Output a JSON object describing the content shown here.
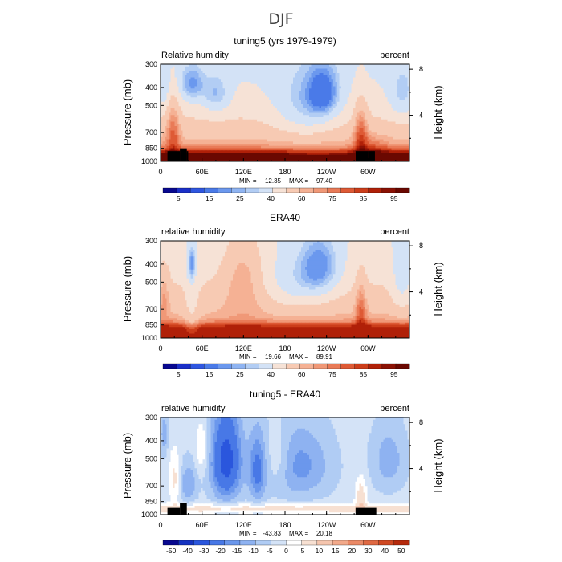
{
  "figure": {
    "title": "DJF"
  },
  "chart_data": [
    {
      "type": "heatmap",
      "title": "tuning5 (yrs 1979-1979)",
      "left_label": "Relative humidity",
      "right_label": "percent",
      "ylabel": "Pressure (mb)",
      "ylabel_right": "Height (km)",
      "x_ticks": [
        "0",
        "60E",
        "120E",
        "180",
        "120W",
        "60W"
      ],
      "x_tick_values": [
        0,
        60,
        120,
        180,
        240,
        300
      ],
      "xlim": [
        0,
        360
      ],
      "y_ticks": [
        "300",
        "400",
        "500",
        "700",
        "850",
        "1000"
      ],
      "y_tick_values": [
        300,
        400,
        500,
        700,
        850,
        1000
      ],
      "ylim": [
        1000,
        300
      ],
      "y_scale": "log",
      "height_ticks": [
        "8",
        "4"
      ],
      "height_tick_values": [
        8,
        4
      ],
      "min_label": "MIN =",
      "min_value": "12.35",
      "max_label": "MAX =",
      "max_value": "97.40",
      "colorbar_ticks": [
        "5",
        "15",
        "25",
        "40",
        "60",
        "75",
        "85",
        "95"
      ],
      "field": "tuning5",
      "palette": "full"
    },
    {
      "type": "heatmap",
      "title": "ERA40",
      "left_label": "relative humidity",
      "right_label": "percent",
      "ylabel": "Pressure (mb)",
      "ylabel_right": "Height (km)",
      "x_ticks": [
        "0",
        "60E",
        "120E",
        "180",
        "120W",
        "60W"
      ],
      "x_tick_values": [
        0,
        60,
        120,
        180,
        240,
        300
      ],
      "xlim": [
        0,
        360
      ],
      "y_ticks": [
        "300",
        "400",
        "500",
        "700",
        "850",
        "1000"
      ],
      "y_tick_values": [
        300,
        400,
        500,
        700,
        850,
        1000
      ],
      "ylim": [
        1000,
        300
      ],
      "y_scale": "log",
      "height_ticks": [
        "8",
        "4"
      ],
      "height_tick_values": [
        8,
        4
      ],
      "min_label": "MIN =",
      "min_value": "19.66",
      "max_label": "MAX =",
      "max_value": "89.91",
      "colorbar_ticks": [
        "5",
        "15",
        "25",
        "40",
        "60",
        "75",
        "85",
        "95"
      ],
      "field": "era40",
      "palette": "full"
    },
    {
      "type": "heatmap",
      "title": "tuning5 - ERA40",
      "left_label": "relative humidity",
      "right_label": "percent",
      "ylabel": "Pressure (mb)",
      "ylabel_right": "Height (km)",
      "x_ticks": [
        "0",
        "60E",
        "120E",
        "180",
        "120W",
        "60W"
      ],
      "x_tick_values": [
        0,
        60,
        120,
        180,
        240,
        300
      ],
      "xlim": [
        0,
        360
      ],
      "y_ticks": [
        "300",
        "400",
        "500",
        "700",
        "850",
        "1000"
      ],
      "y_tick_values": [
        300,
        400,
        500,
        700,
        850,
        1000
      ],
      "ylim": [
        1000,
        300
      ],
      "y_scale": "log",
      "height_ticks": [
        "8",
        "4"
      ],
      "height_tick_values": [
        8,
        4
      ],
      "min_label": "MIN =",
      "min_value": "-43.83",
      "max_label": "MAX =",
      "max_value": "20.18",
      "colorbar_ticks": [
        "-50",
        "-40",
        "-30",
        "-20",
        "-15",
        "-10",
        "-5",
        "0",
        "5",
        "10",
        "15",
        "20",
        "30",
        "40",
        "50"
      ],
      "field": "diff",
      "palette": "diff"
    }
  ],
  "palettes": {
    "full": [
      "#08088f",
      "#1a2fc8",
      "#2f56e0",
      "#4a7ae8",
      "#6b98ee",
      "#8fb4f2",
      "#b2cdf4",
      "#d3e2f6",
      "#f6e2d6",
      "#f7cab3",
      "#f5b194",
      "#f09877",
      "#e97a57",
      "#de5a35",
      "#cc3d1a",
      "#b02008",
      "#8a1104",
      "#6a0801"
    ],
    "diff": [
      "#08088f",
      "#1533c0",
      "#2a56dd",
      "#4878e6",
      "#6b97ec",
      "#8eb2f1",
      "#b0ccf4",
      "#d4e3f7",
      "#ffffff",
      "#f7e0d2",
      "#f5c5ae",
      "#f2a98a",
      "#ea8966",
      "#df6943",
      "#cf4822",
      "#b52a0c"
    ],
    "colorbar_full": [
      "#08088f",
      "#1a2fc8",
      "#2f56e0",
      "#4a7ae8",
      "#6b98ee",
      "#8fb4f2",
      "#b2cdf4",
      "#d3e2f6",
      "#f6e2d6",
      "#f7cab3",
      "#f5b194",
      "#f09877",
      "#e97a57",
      "#de5a35",
      "#cc3d1a",
      "#b02008",
      "#8a1104",
      "#6a0801"
    ],
    "colorbar_diff": [
      "#08088f",
      "#1533c0",
      "#2a56dd",
      "#4878e6",
      "#6b97ec",
      "#8eb2f1",
      "#b0ccf4",
      "#d4e3f7",
      "#ffffff",
      "#f7e0d2",
      "#f5c5ae",
      "#f2a98a",
      "#ea8966",
      "#df6943",
      "#cf4822",
      "#b52a0c"
    ]
  }
}
